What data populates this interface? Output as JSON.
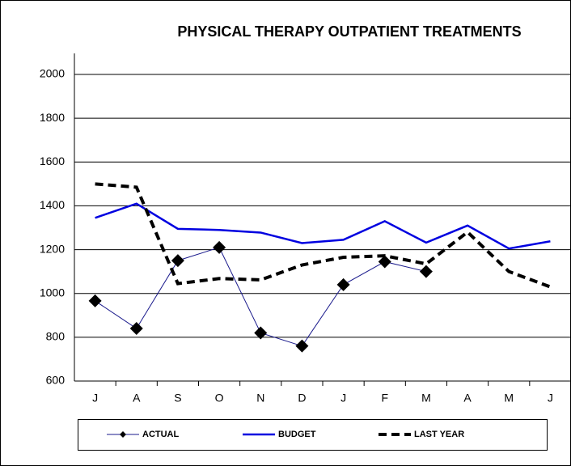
{
  "chart_data": {
    "type": "line",
    "title": "PHYSICAL THERAPY OUTPATIENT TREATMENTS",
    "categories": [
      "J",
      "A",
      "S",
      "O",
      "N",
      "D",
      "J",
      "F",
      "M",
      "A",
      "M",
      "J"
    ],
    "series": [
      {
        "name": "ACTUAL",
        "color": "#1a1a8c",
        "values": [
          966,
          840,
          1150,
          1210,
          820,
          760,
          1040,
          1145,
          1100,
          null,
          null,
          null
        ]
      },
      {
        "name": "BUDGET",
        "color": "#0000e0",
        "values": [
          1345,
          1410,
          1295,
          1290,
          1278,
          1230,
          1245,
          1330,
          1232,
          1310,
          1205,
          1238
        ]
      },
      {
        "name": "LAST YEAR",
        "color": "#000000",
        "values": [
          1500,
          1485,
          1045,
          1068,
          1062,
          1130,
          1165,
          1172,
          1135,
          1280,
          1100,
          1030
        ]
      }
    ],
    "ylim": [
      600,
      2000
    ],
    "yticks": [
      600,
      800,
      1000,
      1200,
      1400,
      1600,
      1800,
      2000
    ],
    "grid": true,
    "legend": "bottom"
  }
}
